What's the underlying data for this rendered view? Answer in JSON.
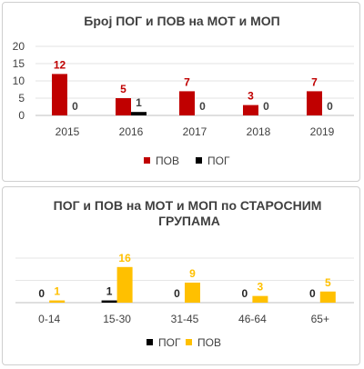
{
  "chart_data": [
    {
      "type": "bar",
      "title": "Број ПОГ и ПОВ на МОТ и МОП",
      "categories": [
        "2015",
        "2016",
        "2017",
        "2018",
        "2019"
      ],
      "series": [
        {
          "name": "ПОВ",
          "color": "#c00000",
          "values": [
            12,
            5,
            7,
            3,
            7
          ]
        },
        {
          "name": "ПОГ",
          "color": "#000000",
          "values": [
            0,
            1,
            0,
            0,
            0
          ]
        }
      ],
      "yticks": [
        "0",
        "5",
        "10",
        "15",
        "20"
      ],
      "ylim": [
        0,
        20
      ],
      "grid": true,
      "legend": "bottom"
    },
    {
      "type": "bar",
      "title": "ПОГ  и ПОВ на МОТ и МОП по СТАРОСНИМ ГРУПАМА",
      "categories": [
        "0-14",
        "15-30",
        "31-45",
        "46-64",
        "65+"
      ],
      "series": [
        {
          "name": "ПОГ",
          "color": "#000000",
          "values": [
            0,
            1,
            0,
            0,
            0
          ]
        },
        {
          "name": "ПОВ",
          "color": "#ffc000",
          "values": [
            1,
            16,
            9,
            3,
            5
          ]
        }
      ],
      "ylim": [
        0,
        20
      ],
      "grid": true,
      "legend": "bottom"
    }
  ]
}
